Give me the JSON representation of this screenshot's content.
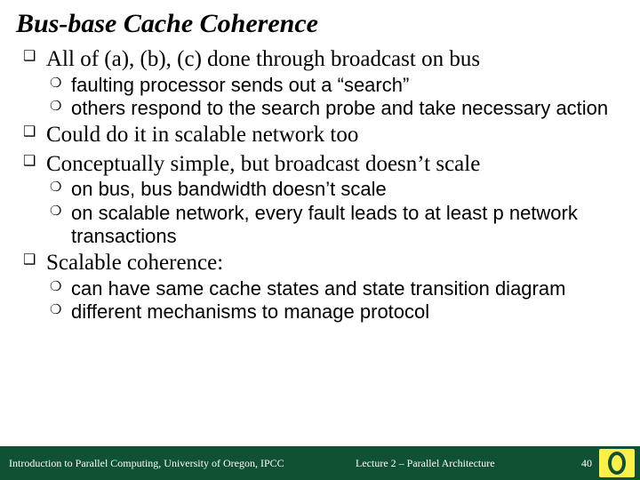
{
  "title": "Bus-base Cache Coherence",
  "bullets": {
    "b1": "All of (a), (b), (c) done through broadcast on bus",
    "b1a": "faulting processor sends out a “search”",
    "b1b": "others respond to the search probe and take necessary action",
    "b2": "Could do it in scalable network too",
    "b3": "Conceptually simple, but broadcast doesn’t scale",
    "b3a": "on bus, bus bandwidth doesn’t scale",
    "b3b": "on scalable network, every fault leads to at least  p network transactions",
    "b4": "Scalable coherence:",
    "b4a": "can have same cache states and state transition diagram",
    "b4b": "different mechanisms to manage protocol"
  },
  "footer": {
    "left": "Introduction to Parallel Computing, University of Oregon, IPCC",
    "center": "Lecture 2 – Parallel Architecture",
    "page": "40"
  },
  "colors": {
    "footer_bg": "#0f5132",
    "logo_bg": "#fef04a",
    "text": "#000000",
    "footer_text": "#ffffff"
  }
}
